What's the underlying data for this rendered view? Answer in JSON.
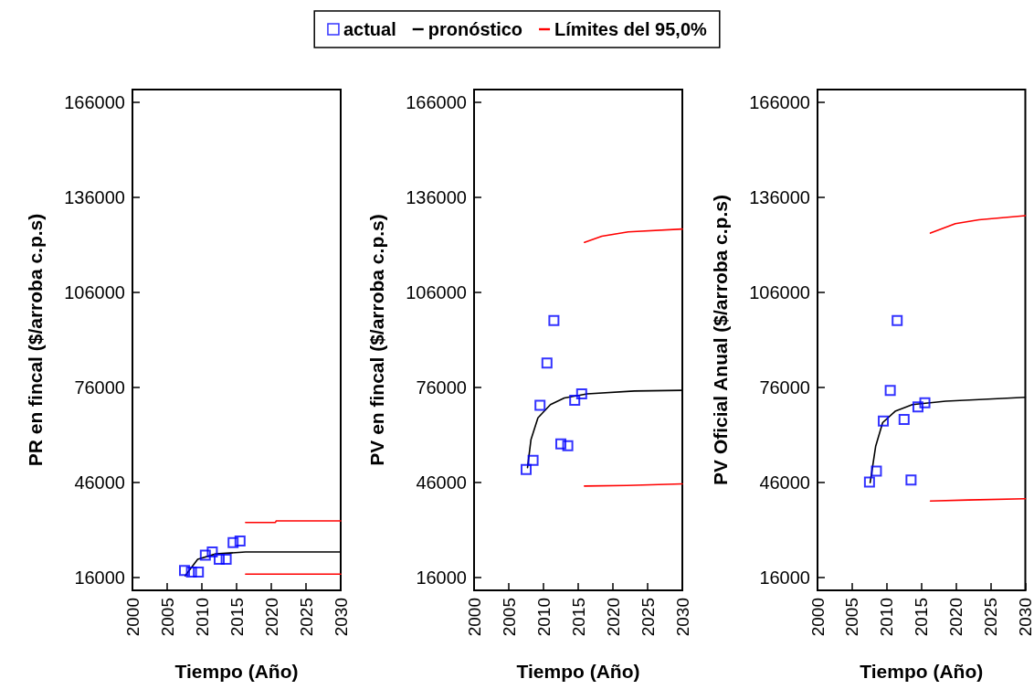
{
  "chart_data": [
    {
      "type": "scatter",
      "xlabel": "Tiempo (Año)",
      "ylabel": "PR en fincal ($/arroba c.p.s)",
      "xlim": [
        2000,
        2030
      ],
      "xticks": [
        2000,
        2005,
        2010,
        2015,
        2020,
        2025,
        2030
      ],
      "ylim": [
        12000,
        170000
      ],
      "yticks": [
        16000,
        46000,
        76000,
        106000,
        136000,
        166000
      ],
      "grid": false,
      "legend": false,
      "series": [
        {
          "marker": "square",
          "color": "#0000ff",
          "x": [
            2007.5,
            2008.5,
            2009.5,
            2010.5,
            2011.5,
            2012.5,
            2013.5,
            2014.5,
            2015.5
          ],
          "values": [
            18300,
            17800,
            17800,
            23100,
            24100,
            21800,
            21800,
            27100,
            27600
          ]
        },
        {
          "type": "line",
          "marker": "none",
          "line_style": "solid",
          "color": "#000000",
          "x": [
            2007.6,
            2009.4,
            2012,
            2016.3,
            2030
          ],
          "values": [
            16600,
            21800,
            23500,
            24100,
            24100
          ]
        },
        {
          "type": "line",
          "marker": "none",
          "line_style": "solid",
          "color": "#ff0000",
          "x": [
            2016.3,
            2020.6,
            2020.7,
            2030
          ],
          "values": [
            33400,
            33400,
            33900,
            33900
          ]
        },
        {
          "type": "line",
          "marker": "none",
          "line_style": "solid",
          "color": "#ff0000",
          "x": [
            2016.3,
            2030
          ],
          "values": [
            17100,
            17100
          ]
        }
      ]
    },
    {
      "type": "scatter",
      "xlabel": "Tiempo (Año)",
      "ylabel": "PV en fincal ($/arroba c.p.s)",
      "xlim": [
        2000,
        2030
      ],
      "xticks": [
        2000,
        2005,
        2010,
        2015,
        2020,
        2025,
        2030
      ],
      "ylim": [
        12000,
        170000
      ],
      "yticks": [
        16000,
        46000,
        76000,
        106000,
        136000,
        166000
      ],
      "grid": false,
      "legend": "top",
      "series": [
        {
          "name": "actual",
          "marker": "square",
          "color": "#0000ff",
          "x": [
            2007.5,
            2008.5,
            2009.5,
            2010.5,
            2011.5,
            2012.5,
            2013.5,
            2014.5,
            2015.5
          ],
          "values": [
            50100,
            53000,
            70400,
            83700,
            97100,
            58200,
            57600,
            72000,
            74000
          ]
        },
        {
          "name": "pronóstico",
          "type": "line",
          "marker": "none",
          "line_style": "solid",
          "color": "#000000",
          "x": [
            2007.7,
            2008.2,
            2009.2,
            2011,
            2013,
            2016.3,
            2023.1,
            2030
          ],
          "values": [
            50700,
            59600,
            66400,
            70600,
            72700,
            74000,
            74900,
            75100
          ]
        },
        {
          "name": "Límites del 95,0%",
          "type": "line",
          "marker": "none",
          "line_style": "solid",
          "color": "#ff0000",
          "x": [
            2015.9,
            2018.4,
            2022.2,
            2030
          ],
          "values": [
            121800,
            123700,
            125100,
            126000
          ]
        },
        {
          "type": "line",
          "marker": "none",
          "line_style": "solid",
          "color": "#ff0000",
          "x": [
            2015.9,
            2022,
            2030
          ],
          "values": [
            44900,
            45100,
            45600
          ]
        }
      ]
    },
    {
      "type": "scatter",
      "xlabel": "Tiempo (Año)",
      "ylabel": "PV Oficial Anual ($/arroba c.p.s)",
      "xlim": [
        2000,
        2030
      ],
      "xticks": [
        2000,
        2005,
        2010,
        2015,
        2020,
        2025,
        2030
      ],
      "ylim": [
        12000,
        170000
      ],
      "yticks": [
        16000,
        46000,
        76000,
        106000,
        136000,
        166000
      ],
      "grid": false,
      "legend": false,
      "series": [
        {
          "marker": "square",
          "color": "#0000ff",
          "x": [
            2007.5,
            2008.5,
            2009.5,
            2010.5,
            2011.5,
            2012.5,
            2013.5,
            2014.5,
            2015.5
          ],
          "values": [
            46200,
            49600,
            65400,
            75100,
            97100,
            65900,
            46800,
            69900,
            71200
          ]
        },
        {
          "type": "line",
          "marker": "none",
          "line_style": "solid",
          "color": "#000000",
          "x": [
            2007.6,
            2008.4,
            2009.4,
            2011.2,
            2013.7,
            2018.5,
            2023.3,
            2030
          ],
          "values": [
            46000,
            57500,
            64900,
            68500,
            70600,
            71700,
            72200,
            72900
          ]
        },
        {
          "type": "line",
          "marker": "none",
          "line_style": "solid",
          "color": "#ff0000",
          "x": [
            2016.3,
            2019.9,
            2023.3,
            2030
          ],
          "values": [
            124700,
            127700,
            128900,
            130200
          ]
        },
        {
          "type": "line",
          "marker": "none",
          "line_style": "solid",
          "color": "#ff0000",
          "x": [
            2016.3,
            2021.8,
            2030
          ],
          "values": [
            40200,
            40500,
            40900
          ]
        }
      ]
    }
  ]
}
